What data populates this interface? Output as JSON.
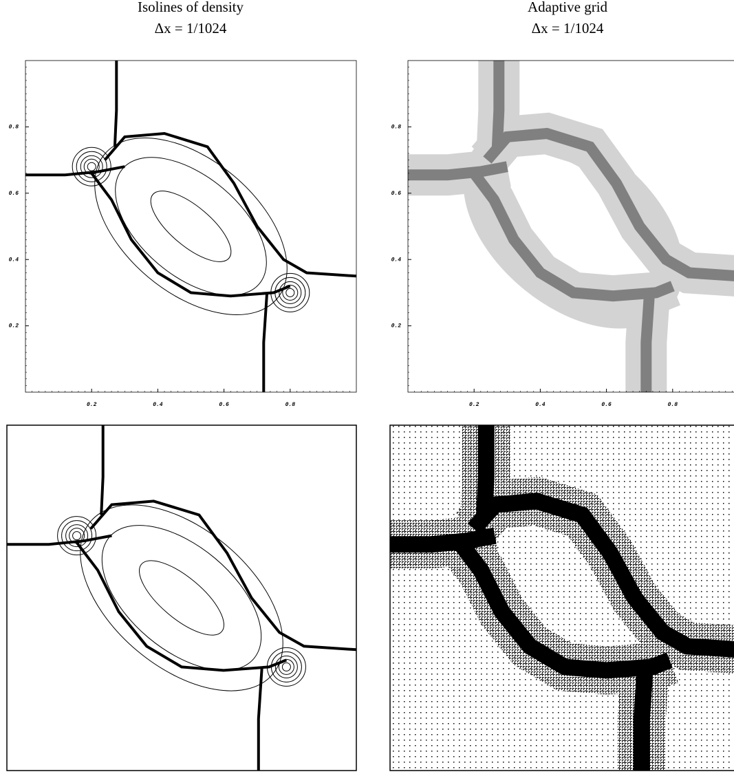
{
  "panels": [
    {
      "title": "Isolines of density",
      "subtitle": "Δx = 1/1024",
      "xlim": [
        0,
        1
      ],
      "ylim": [
        0,
        1
      ],
      "xticks": [
        0.2,
        0.4,
        0.6,
        0.8
      ],
      "yticks": [
        0.2,
        0.4,
        0.6,
        0.8
      ]
    },
    {
      "title": "Adaptive grid",
      "subtitle": "Δx = 1/1024",
      "xlim": [
        0,
        1
      ],
      "ylim": [
        0,
        1
      ],
      "xticks": [
        0.2,
        0.4,
        0.6,
        0.8
      ],
      "yticks": [
        0.2,
        0.4,
        0.6,
        0.8
      ]
    }
  ]
}
